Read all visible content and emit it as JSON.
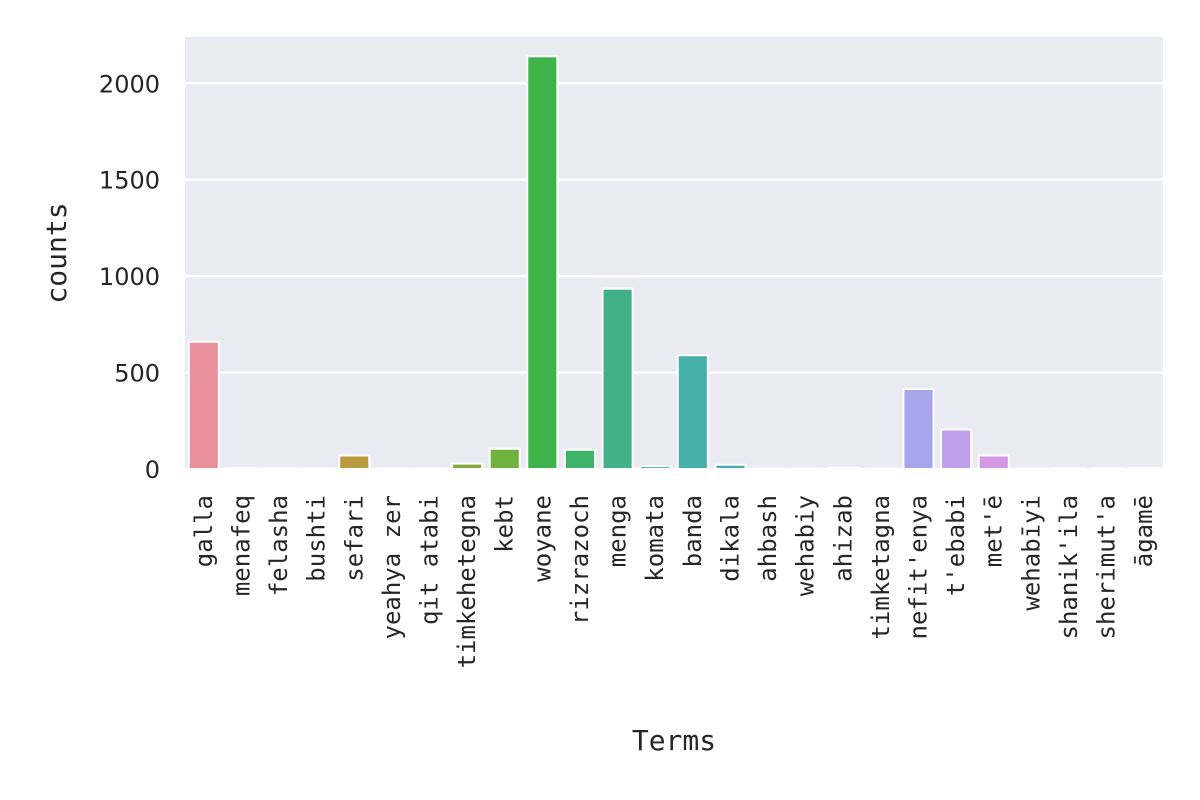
{
  "chart_data": {
    "type": "bar",
    "xlabel": "Terms",
    "ylabel": "counts",
    "ylim": [
      0,
      2240
    ],
    "yticks": [
      0,
      500,
      1000,
      1500,
      2000
    ],
    "grid": true,
    "categories": [
      "galla",
      "menafeq",
      "felasha",
      "bushti",
      "sefari",
      "yeahya zer",
      "qit atabi",
      "timkehetegna",
      "kebt",
      "woyane",
      "rizrazoch",
      "menga",
      "komata",
      "banda",
      "dikala",
      "ahbash",
      "wehabiy",
      "ahizab",
      "timketagna",
      "nefit'enya",
      "t'ebabi",
      "met'ē",
      "wehabīyi",
      "shanik'ila",
      "sherimut'a",
      "āgamē"
    ],
    "values": [
      660,
      5,
      4,
      3,
      70,
      2,
      3,
      28,
      105,
      2140,
      100,
      935,
      15,
      590,
      22,
      1,
      1,
      6,
      1,
      415,
      205,
      70,
      1,
      4,
      4,
      5
    ],
    "colors": [
      "#e8919d",
      "#e69480",
      "#d99b5c",
      "#c9a047",
      "#b99a3e",
      "#a8a33a",
      "#98a83a",
      "#86ab3a",
      "#6fb23e",
      "#3fb34a",
      "#3fb26a",
      "#42b18a",
      "#46b39c",
      "#47afa9",
      "#48aab6",
      "#4cb3c4",
      "#55b2d6",
      "#6aaee6",
      "#8daaee",
      "#a7a6ec",
      "#c09fea",
      "#d698e6",
      "#e28fdc",
      "#e98dc7",
      "#ec90b3",
      "#ea97a3"
    ]
  }
}
